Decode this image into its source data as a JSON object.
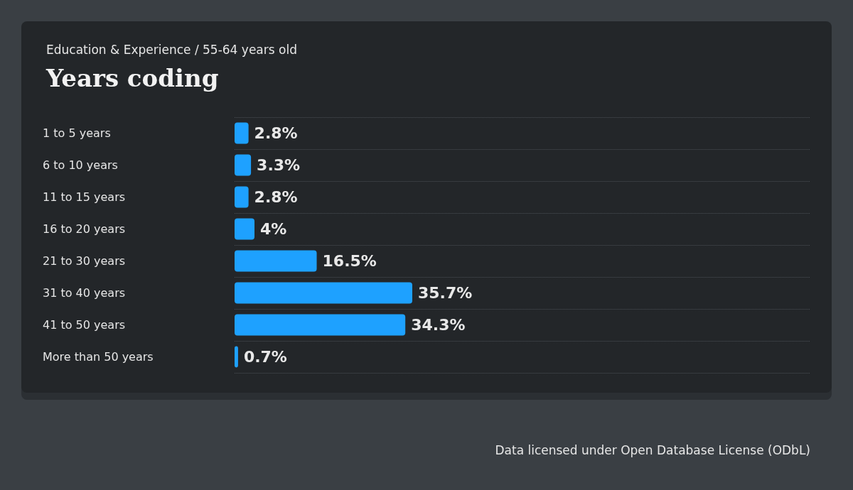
{
  "chart_data": {
    "type": "bar",
    "orientation": "horizontal",
    "subtitle": "Education & Experience / 55-64 years old",
    "title": "Years coding",
    "categories": [
      "1 to 5 years",
      "6 to 10 years",
      "11 to 15 years",
      "16 to 20 years",
      "21 to 30 years",
      "31 to 40 years",
      "41 to 50 years",
      "More than 50 years"
    ],
    "values": [
      2.8,
      3.3,
      2.8,
      4,
      16.5,
      35.7,
      34.3,
      0.7
    ],
    "value_labels": [
      "2.8%",
      "3.3%",
      "2.8%",
      "4%",
      "16.5%",
      "35.7%",
      "34.3%",
      "0.7%"
    ],
    "color": "#1ea1ff",
    "grid": "y",
    "annotations": [
      "Data licensed under Open Database License (ODbL)"
    ]
  }
}
